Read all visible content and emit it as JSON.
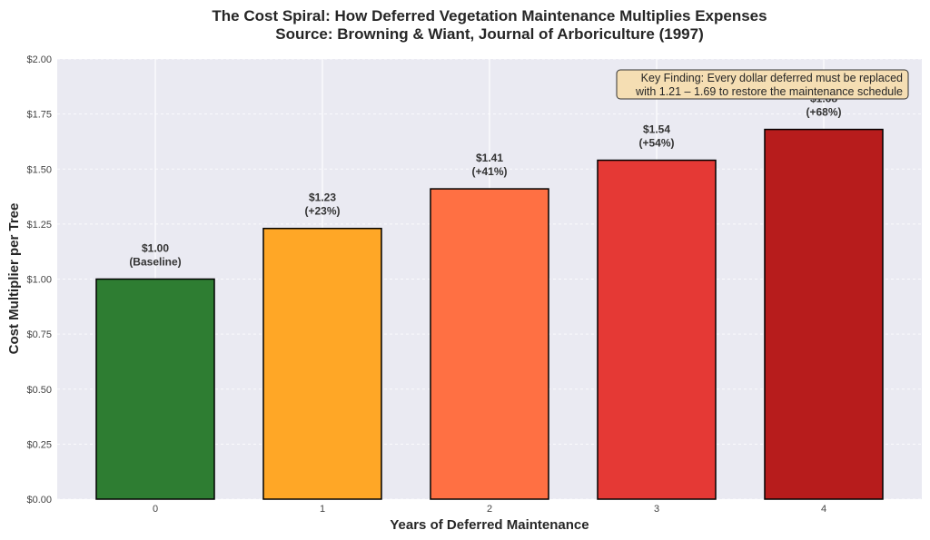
{
  "chart_data": {
    "type": "bar",
    "title": "The Cost Spiral: How Deferred Vegetation Maintenance Multiplies Expenses",
    "subtitle": "Source: Browning & Wiant, Journal of Arboriculture (1997)",
    "xlabel": "Years of Deferred Maintenance",
    "ylabel": "Cost Multiplier per Tree",
    "categories": [
      "0",
      "1",
      "2",
      "3",
      "4"
    ],
    "values": [
      1.0,
      1.23,
      1.41,
      1.54,
      1.68
    ],
    "bar_labels": [
      [
        "$1.00",
        "(Baseline)"
      ],
      [
        "$1.23",
        "(+23%)"
      ],
      [
        "$1.41",
        "(+41%)"
      ],
      [
        "$1.54",
        "(+54%)"
      ],
      [
        "$1.68",
        "(+68%)"
      ]
    ],
    "bar_colors": [
      "#2e7d32",
      "#ffa726",
      "#ff7043",
      "#e53935",
      "#b71c1c"
    ],
    "ylim": [
      0,
      2.0
    ],
    "yticks": [
      0,
      0.25,
      0.5,
      0.75,
      1.0,
      1.25,
      1.5,
      1.75,
      2.0
    ],
    "ytick_labels": [
      "$0.00",
      "$0.25",
      "$0.50",
      "$0.75",
      "$1.00",
      "$1.25",
      "$1.50",
      "$1.75",
      "$2.00"
    ],
    "grid": true,
    "annotation": {
      "lines": [
        "Key Finding: Every dollar deferred must be replaced",
        "with 1.21 – 1.69 to restore the maintenance schedule"
      ],
      "placement": "top-right",
      "background": "#f5deb3"
    },
    "colors": {
      "plot_background": "#eaeaf2",
      "edge": "#000000"
    }
  }
}
